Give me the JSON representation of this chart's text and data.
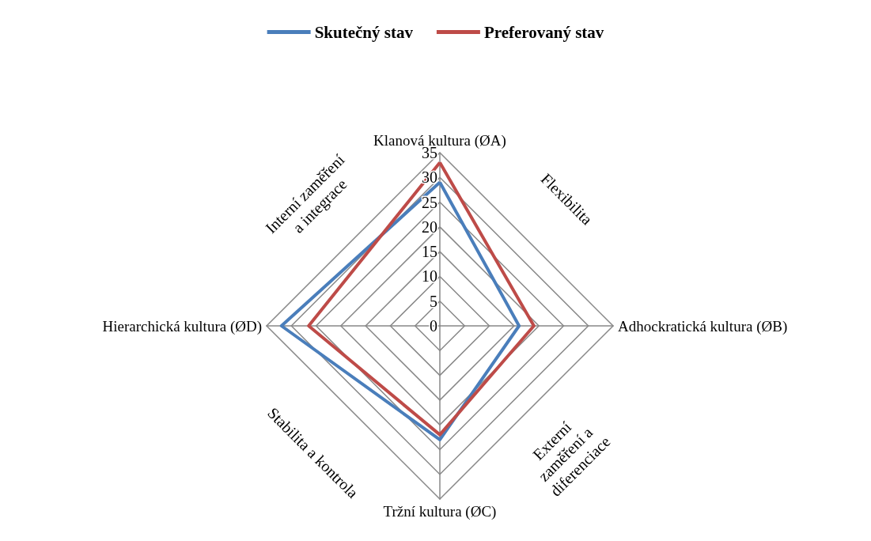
{
  "chart_data": {
    "type": "radar",
    "categories": [
      "Klanová kultura (ØA)",
      "Adhockratická kultura (ØB)",
      "Tržní kultura (ØC)",
      "Hierarchická kultura (ØD)"
    ],
    "series": [
      {
        "name": "Skutečný stav",
        "color": "#4a7ebb",
        "values": [
          29,
          16,
          23,
          32
        ]
      },
      {
        "name": "Preferovaný stav",
        "color": "#be4b48",
        "values": [
          33,
          19,
          22,
          26.5
        ]
      }
    ],
    "ylim": [
      0,
      35
    ],
    "yticks": [
      0,
      5,
      10,
      15,
      20,
      25,
      30,
      35
    ],
    "grid": true,
    "legend": "top",
    "marker": "none",
    "line_style": "solid",
    "annotations": [
      "Interní zaměření a integrace",
      "Flexibilita",
      "Externí zaměření a diferenciace",
      "Stabilita a kontrola"
    ]
  }
}
